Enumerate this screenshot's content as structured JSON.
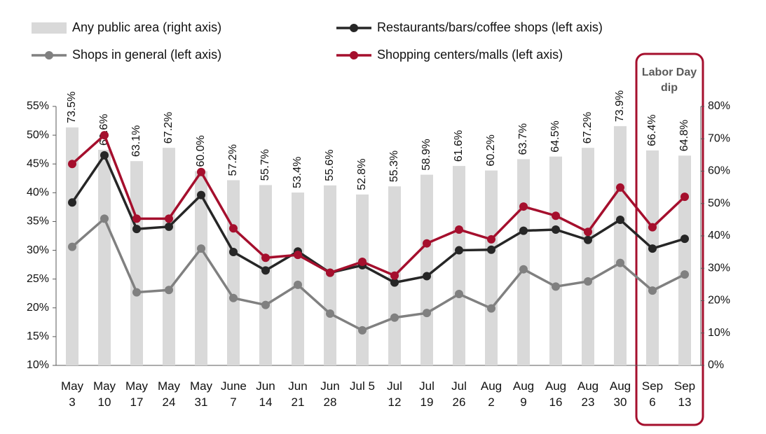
{
  "chart_data": {
    "type": "bar-line",
    "categories": [
      "May 3",
      "May 10",
      "May 17",
      "May 24",
      "May 31",
      "June 7",
      "Jun 14",
      "Jun 21",
      "Jun 28",
      "Jul 5",
      "Jul 12",
      "Jul 19",
      "Jul 26",
      "Aug 2",
      "Aug 9",
      "Aug 16",
      "Aug 23",
      "Aug 30",
      "Sep 6",
      "Sep 13"
    ],
    "series": [
      {
        "name": "Any public area (right axis)",
        "type": "bar",
        "axis": "y2",
        "color": "#d9d9d9",
        "values": [
          73.5,
          66.6,
          63.1,
          67.2,
          60.0,
          57.2,
          55.7,
          53.4,
          55.6,
          52.8,
          55.3,
          58.9,
          61.6,
          60.2,
          63.7,
          64.5,
          67.2,
          73.9,
          66.4,
          64.8
        ],
        "value_labels": [
          "73.5%",
          "66.6%",
          "63.1%",
          "67.2%",
          "60.0%",
          "57.2%",
          "55.7%",
          "53.4%",
          "55.6%",
          "52.8%",
          "55.3%",
          "58.9%",
          "61.6%",
          "60.2%",
          "63.7%",
          "64.5%",
          "67.2%",
          "73.9%",
          "66.4%",
          "64.8%"
        ]
      },
      {
        "name": "Restaurants/bars/coffee shops (left axis)",
        "type": "line",
        "color": "#262626",
        "values": [
          38.3,
          46.5,
          33.7,
          34.1,
          39.6,
          29.7,
          26.5,
          29.8,
          26.1,
          27.4,
          24.4,
          25.5,
          30.0,
          30.1,
          33.4,
          33.6,
          31.8,
          35.3,
          30.3,
          32.0
        ]
      },
      {
        "name": "Shops in general (left axis)",
        "type": "line",
        "color": "#808080",
        "values": [
          30.6,
          35.5,
          22.7,
          23.1,
          30.3,
          21.7,
          20.5,
          24.0,
          19.0,
          16.1,
          18.3,
          19.1,
          22.4,
          19.9,
          26.7,
          23.7,
          24.6,
          27.8,
          23.0,
          25.8
        ]
      },
      {
        "name": "Shopping centers/malls (left axis)",
        "type": "line",
        "color": "#a50f2d",
        "values": [
          45.0,
          50.0,
          35.5,
          35.5,
          43.6,
          33.8,
          28.7,
          29.2,
          26.1,
          28.0,
          25.6,
          31.2,
          33.6,
          31.9,
          37.6,
          36.0,
          33.2,
          40.9,
          34.0,
          39.3
        ]
      }
    ],
    "ylim": [
      10,
      55
    ],
    "yticks": [
      {
        "value": 10,
        "label": "10%"
      },
      {
        "value": 15,
        "label": "15%"
      },
      {
        "value": 20,
        "label": "20%"
      },
      {
        "value": 25,
        "label": "25%"
      },
      {
        "value": 30,
        "label": "30%"
      },
      {
        "value": 35,
        "label": "35%"
      },
      {
        "value": 40,
        "label": "40%"
      },
      {
        "value": 45,
        "label": "45%"
      },
      {
        "value": 50,
        "label": "50%"
      },
      {
        "value": 55,
        "label": "55%"
      }
    ],
    "y2lim": [
      0,
      80
    ],
    "y2ticks": [
      {
        "value": 0,
        "label": "0%"
      },
      {
        "value": 10,
        "label": "10%"
      },
      {
        "value": 20,
        "label": "20%"
      },
      {
        "value": 30,
        "label": "30%"
      },
      {
        "value": 40,
        "label": "40%"
      },
      {
        "value": 50,
        "label": "50%"
      },
      {
        "value": 60,
        "label": "60%"
      },
      {
        "value": 70,
        "label": "70%"
      },
      {
        "value": 80,
        "label": "80%"
      }
    ],
    "annotation": "Labor Day dip"
  }
}
